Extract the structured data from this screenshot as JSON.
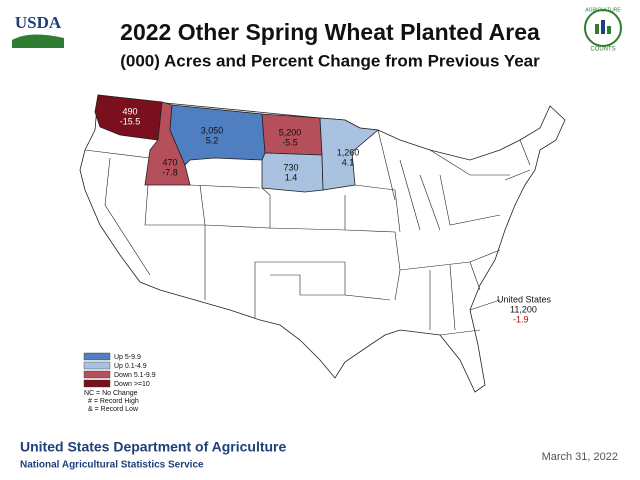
{
  "header": {
    "logo_left": "USDA",
    "title": "2022 Other Spring Wheat Planted Area",
    "subtitle": "(000) Acres and Percent Change from Previous Year",
    "logo_right": [
      "AGRICULTURE",
      "COUNTS"
    ]
  },
  "map": {
    "states": [
      {
        "acres": "490",
        "change": "-15.5",
        "color": "#7a0f1e"
      },
      {
        "acres": "470",
        "change": "-7.8",
        "color": "#b5505b"
      },
      {
        "acres": "3,050",
        "change": "5.2",
        "color": "#4f7fc0"
      },
      {
        "acres": "5,200",
        "change": "-5.5",
        "color": "#b5505b"
      },
      {
        "acres": "730",
        "change": "1.4",
        "color": "#a9c2e0"
      },
      {
        "acres": "1,260",
        "change": "4.1",
        "color": "#a9c2e0"
      }
    ],
    "legend": {
      "items": [
        {
          "label": "Up 5-9.9",
          "color": "#4f7fc0"
        },
        {
          "label": "Up 0.1-4.9",
          "color": "#a9c2e0"
        },
        {
          "label": "Down 5.1-9.9",
          "color": "#b5505b"
        },
        {
          "label": "Down >=10",
          "color": "#7a0f1e"
        }
      ],
      "notes": [
        "NC = No Change",
        "# = Record High",
        "& = Record Low"
      ]
    },
    "national": {
      "label": "United States",
      "acres": "11,200",
      "change": "-1.9"
    }
  },
  "footer": {
    "agency": "United States Department of Agriculture",
    "service": "National Agricultural Statistics Service",
    "date": "March 31, 2022"
  }
}
